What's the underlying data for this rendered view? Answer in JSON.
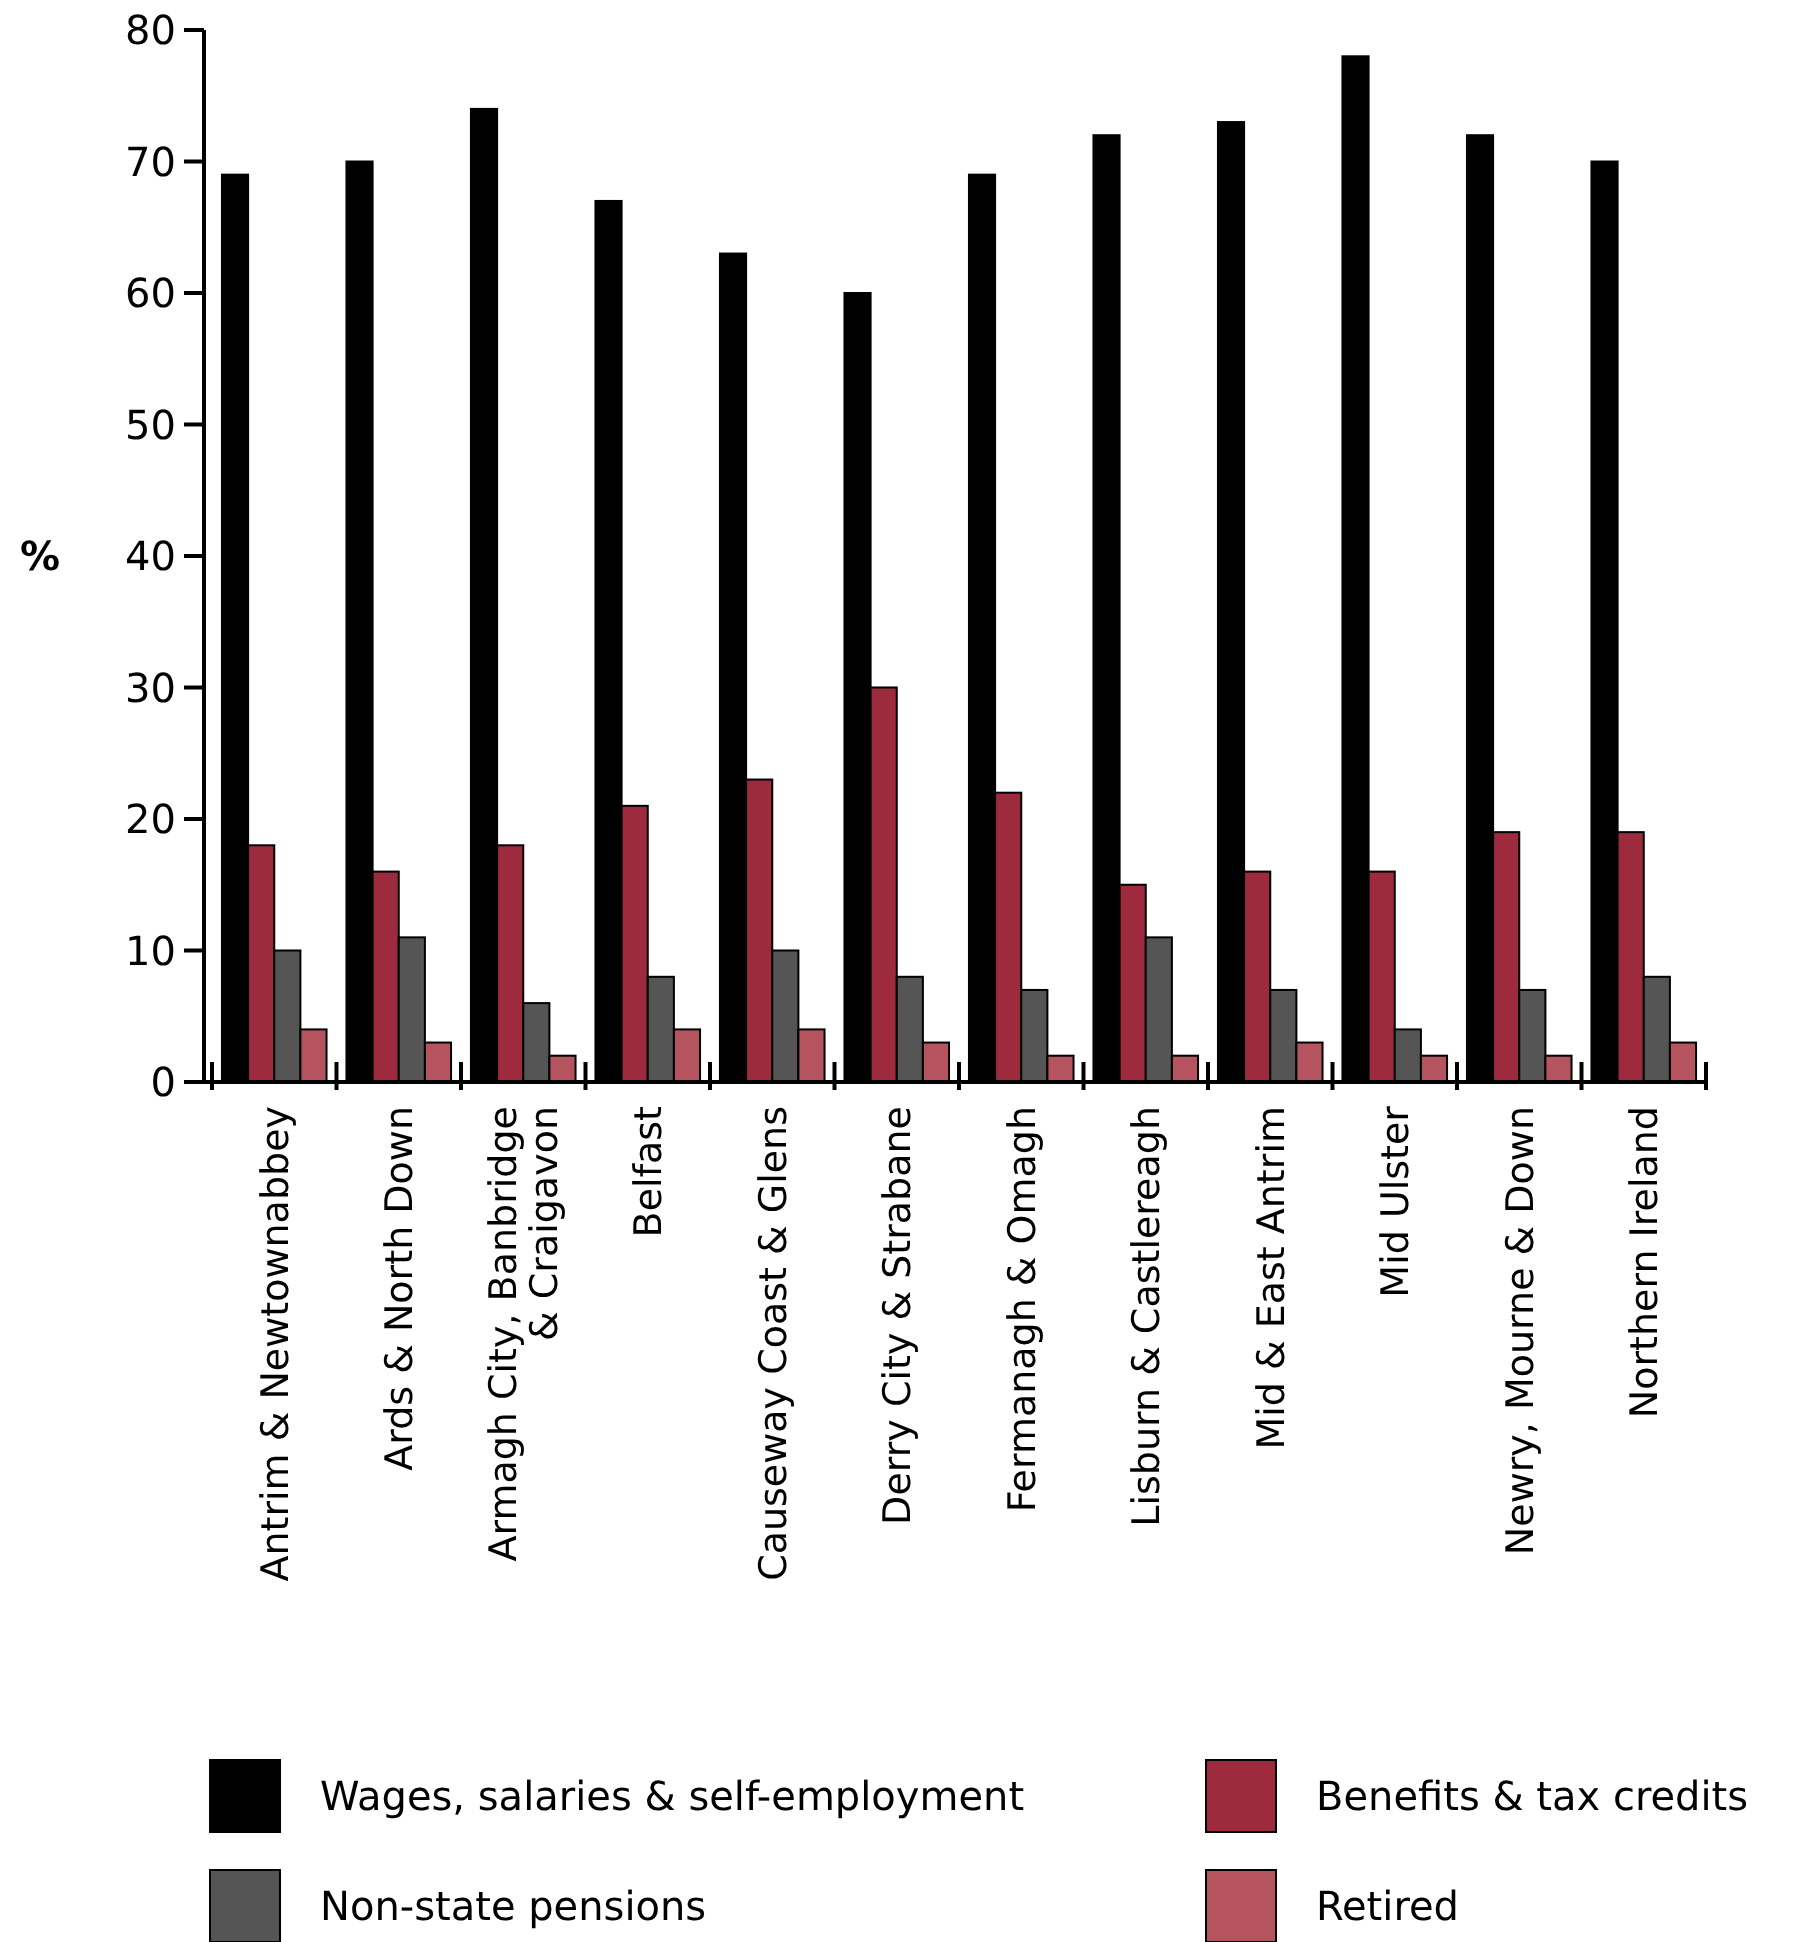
{
  "chart_data": {
    "type": "bar",
    "ylabel": "%",
    "categories": [
      "Antrim & Newtownabbey",
      "Ards & North Down",
      "Armagh City, Banbridge & Craigavon",
      "Belfast",
      "Causeway Coast & Glens",
      "Derry City & Strabane",
      "Fermanagh & Omagh",
      "Lisburn & Castlereagh",
      "Mid & East Antrim",
      "Mid Ulster",
      "Newry, Mourne & Down",
      "Northern Ireland"
    ],
    "series": [
      {
        "name": "Wages, salaries & self-employment",
        "color": "#000000",
        "values": [
          69,
          70,
          74,
          67,
          63,
          60,
          69,
          72,
          73,
          78,
          72,
          70
        ]
      },
      {
        "name": "Benefits & tax credits",
        "color": "#9e2a3e",
        "values": [
          18,
          16,
          18,
          21,
          23,
          30,
          22,
          15,
          16,
          16,
          19,
          19
        ]
      },
      {
        "name": "Non-state pensions",
        "color": "#555555",
        "values": [
          10,
          11,
          6,
          8,
          10,
          8,
          7,
          11,
          7,
          4,
          7,
          8
        ]
      },
      {
        "name": "Retired",
        "color": "#b5535f",
        "values": [
          4,
          3,
          2,
          4,
          4,
          3,
          2,
          2,
          3,
          2,
          2,
          3
        ]
      }
    ],
    "ylim": [
      0,
      80
    ],
    "yticks": [
      0,
      10,
      20,
      30,
      40,
      50,
      60,
      70,
      80
    ],
    "grid": false,
    "legend": "bottom"
  }
}
